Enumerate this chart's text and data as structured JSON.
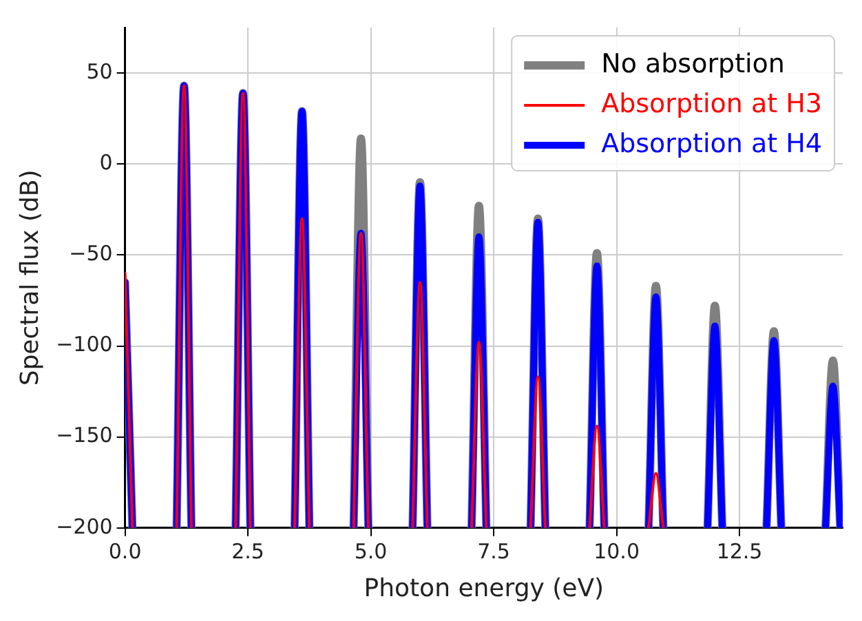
{
  "chart_data": {
    "type": "line",
    "xlabel": "Photon energy (eV)",
    "ylabel": "Spectral flux (dB)",
    "x": [
      0,
      0.15,
      0.6,
      1.05,
      1.2,
      1.35,
      1.8,
      2.25,
      2.4,
      2.55,
      3.0,
      3.45,
      3.6,
      3.75,
      4.2,
      4.65,
      4.8,
      4.95,
      5.4,
      5.85,
      6.0,
      6.15,
      6.6,
      7.05,
      7.2,
      7.35,
      7.8,
      8.25,
      8.4,
      8.55,
      9.0,
      9.45,
      9.6,
      9.75,
      10.2,
      10.65,
      10.8,
      10.95,
      11.4,
      11.85,
      12.0,
      12.15,
      12.6,
      13.05,
      13.2,
      13.35,
      13.8,
      14.25,
      14.4,
      14.55
    ],
    "series": [
      {
        "name": "No absorption",
        "color": "#808080",
        "values": [
          -65,
          -200,
          null,
          -200,
          43,
          -200,
          null,
          -200,
          39,
          -200,
          null,
          -200,
          29,
          -200,
          null,
          -200,
          14,
          -200,
          null,
          -200,
          -10,
          -200,
          null,
          -200,
          -23,
          -200,
          null,
          -200,
          -30,
          -200,
          null,
          -200,
          -49,
          -200,
          null,
          -200,
          -67,
          -200,
          null,
          -200,
          -78,
          -200,
          null,
          -200,
          -92,
          -200,
          null,
          -200,
          -108,
          -200
        ]
      },
      {
        "name": "Absorption at H3",
        "color": "#ff0000",
        "values": [
          -60,
          -200,
          null,
          -200,
          43,
          -200,
          null,
          -200,
          39,
          -200,
          null,
          -200,
          -30,
          -200,
          null,
          -200,
          -38,
          -200,
          null,
          -200,
          -65,
          -200,
          null,
          -200,
          -98,
          -200,
          null,
          -200,
          -117,
          -200,
          null,
          -200,
          -144,
          -200,
          null,
          -200,
          -170,
          -200,
          null,
          null,
          null,
          null,
          null,
          null,
          null,
          null,
          null,
          null,
          null,
          null
        ]
      },
      {
        "name": "Absorption at H4",
        "color": "#0000ff",
        "values": [
          -65,
          -200,
          null,
          -200,
          43,
          -200,
          null,
          -200,
          39,
          -200,
          null,
          -200,
          29,
          -200,
          null,
          -200,
          -38,
          -200,
          null,
          -200,
          -12,
          -200,
          null,
          -200,
          -40,
          -200,
          null,
          -200,
          -32,
          -200,
          null,
          -200,
          -56,
          -200,
          null,
          -200,
          -73,
          -200,
          null,
          -200,
          -89,
          -200,
          null,
          -200,
          -97,
          -200,
          null,
          -200,
          -122,
          -200
        ]
      }
    ],
    "xlim": [
      0,
      14.6
    ],
    "xticks": [
      {
        "value": 0,
        "label": "0.0"
      },
      {
        "value": 2.5,
        "label": "2.5"
      },
      {
        "value": 5,
        "label": "5.0"
      },
      {
        "value": 7.5,
        "label": "7.5"
      },
      {
        "value": 10,
        "label": "10.0"
      },
      {
        "value": 12.5,
        "label": "12.5"
      }
    ],
    "ylim": [
      -200,
      75
    ],
    "yticks": [
      -200,
      -150,
      -100,
      -50,
      0,
      50
    ],
    "grid": true,
    "legend": "top right",
    "marker": "none",
    "line_style": "solid"
  }
}
